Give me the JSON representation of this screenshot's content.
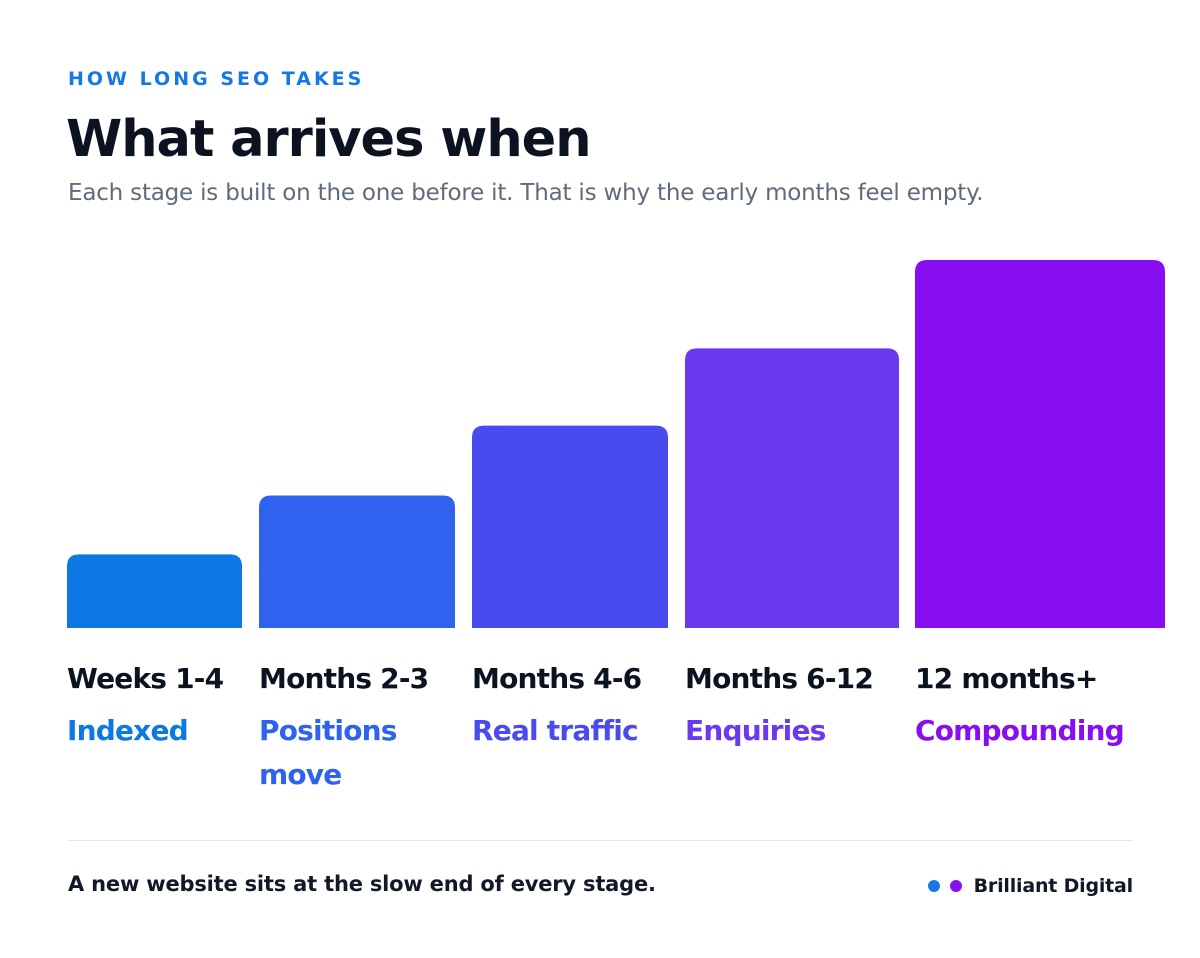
{
  "header": {
    "eyebrow": "HOW LONG SEO TAKES",
    "title": "What arrives when",
    "subtitle": "Each stage is built on the one before it. That is why the early months feel empty."
  },
  "chart_data": {
    "type": "bar",
    "categories": [
      "Weeks 1-4",
      "Months 2-3",
      "Months 4-6",
      "Months 6-12",
      "12 months+"
    ],
    "stage_labels": [
      [
        "Indexed"
      ],
      [
        "Positions",
        "move"
      ],
      [
        "Real traffic"
      ],
      [
        "Enquiries"
      ],
      [
        "Compounding"
      ]
    ],
    "values": [
      20,
      36,
      55,
      76,
      100
    ],
    "ylim": [
      0,
      100
    ],
    "colors": [
      "#0b78e3",
      "#2f62ee",
      "#4a4bee",
      "#6a38ef",
      "#860ef0"
    ],
    "grid": false,
    "legend": "none"
  },
  "footer": {
    "note": "A new website sits at the slow end of every stage.",
    "brand": "Brilliant Digital",
    "brand_dot_colors": [
      "#1478e6",
      "#8a10ef"
    ]
  }
}
